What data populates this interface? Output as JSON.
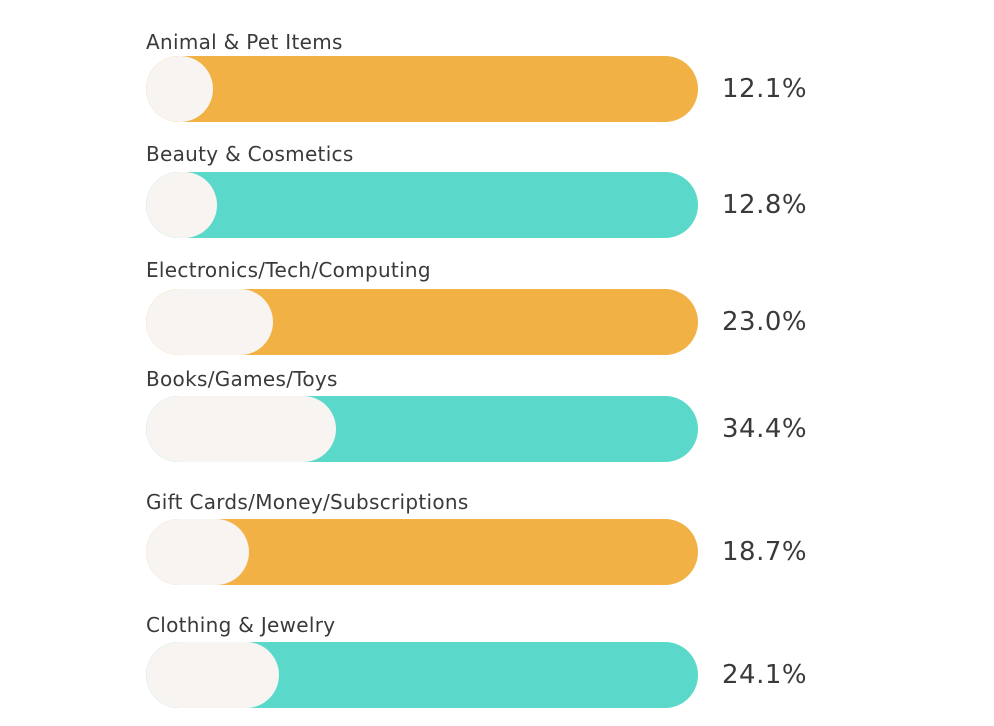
{
  "chart_data": {
    "type": "bar",
    "orientation": "horizontal",
    "xlim": [
      0,
      100
    ],
    "grid": false,
    "categories": [
      "Animal & Pet Items",
      "Beauty & Cosmetics",
      "Electronics/Tech/Computing",
      "Books/Games/Toys",
      "Gift Cards/Money/Subscriptions",
      "Clothing & Jewelry"
    ],
    "values": [
      12.1,
      12.8,
      23.0,
      34.4,
      18.7,
      24.1
    ],
    "value_labels": [
      "12.1%",
      "12.8%",
      "23.0%",
      "34.4%",
      "18.7%",
      "24.1%"
    ],
    "colors": {
      "track": [
        "#F2B144",
        "#5AD9CB",
        "#F2B144",
        "#5AD9CB",
        "#F2B144",
        "#5AD9CB"
      ],
      "fill": "#F7F4F1"
    }
  }
}
